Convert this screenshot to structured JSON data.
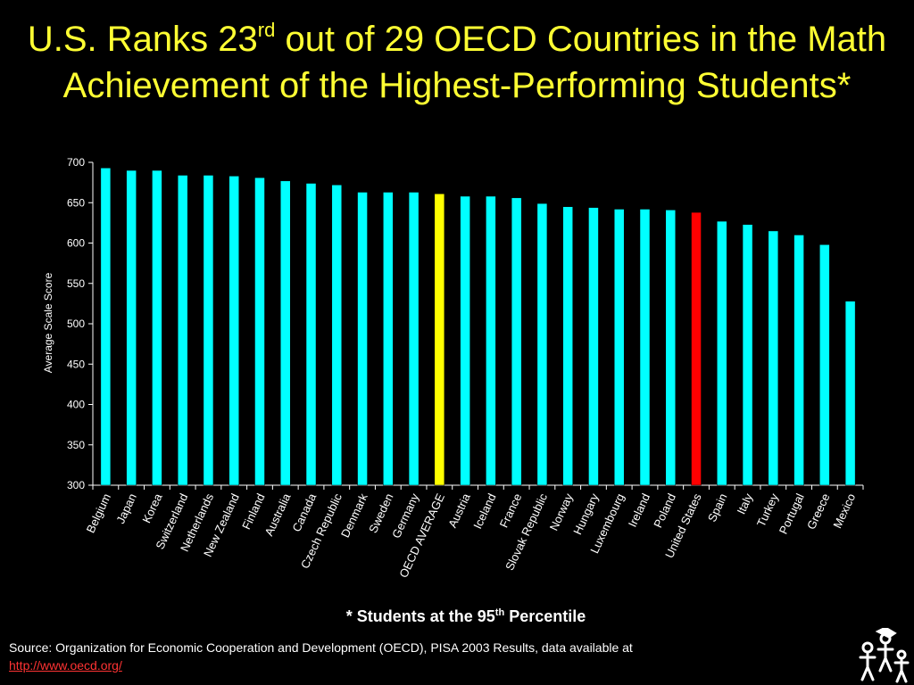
{
  "title": {
    "part1": "U.S. Ranks 23",
    "sup": "rd",
    "part2": " out of 29 OECD Countries in the Math Achievement of the Highest-Performing Students*"
  },
  "footnote": {
    "part1": "* Students at the 95",
    "sup": "th",
    "part2": " Percentile"
  },
  "source": {
    "text": "Source: Organization for Economic Cooperation and Development (OECD), PISA 2003 Results, data available at",
    "link": "http://www.oecd.org/"
  },
  "logo": {
    "icon": "family-figures-icon"
  },
  "colors": {
    "background": "#000000",
    "title": "#ffff33",
    "bar_default": "#00ffff",
    "bar_oecd_average": "#ffff00",
    "bar_united_states": "#ff0000",
    "link": "#ff3333"
  },
  "chart_data": {
    "type": "bar",
    "ylabel": "Average Scale Score",
    "ylim": [
      300,
      700
    ],
    "yticks": [
      300,
      350,
      400,
      450,
      500,
      550,
      600,
      650,
      700
    ],
    "grid": false,
    "categories": [
      "Belgium",
      "Japan",
      "Korea",
      "Switzerland",
      "Netherlands",
      "New Zealand",
      "Finland",
      "Australia",
      "Canada",
      "Czech Republic",
      "Denmark",
      "Sweden",
      "Germany",
      "OECD AVERAGE",
      "Austria",
      "Iceland",
      "France",
      "Slovak Republic",
      "Norway",
      "Hungary",
      "Luxembourg",
      "Ireland",
      "Poland",
      "United States",
      "Spain",
      "Italy",
      "Turkey",
      "Portugal",
      "Greece",
      "Mexico"
    ],
    "values": [
      693,
      690,
      690,
      684,
      684,
      683,
      681,
      677,
      674,
      672,
      663,
      663,
      663,
      661,
      658,
      658,
      656,
      649,
      645,
      644,
      642,
      642,
      641,
      638,
      627,
      623,
      615,
      610,
      598,
      528
    ],
    "highlight": {
      "OECD AVERAGE": "yellow",
      "United States": "red"
    }
  }
}
